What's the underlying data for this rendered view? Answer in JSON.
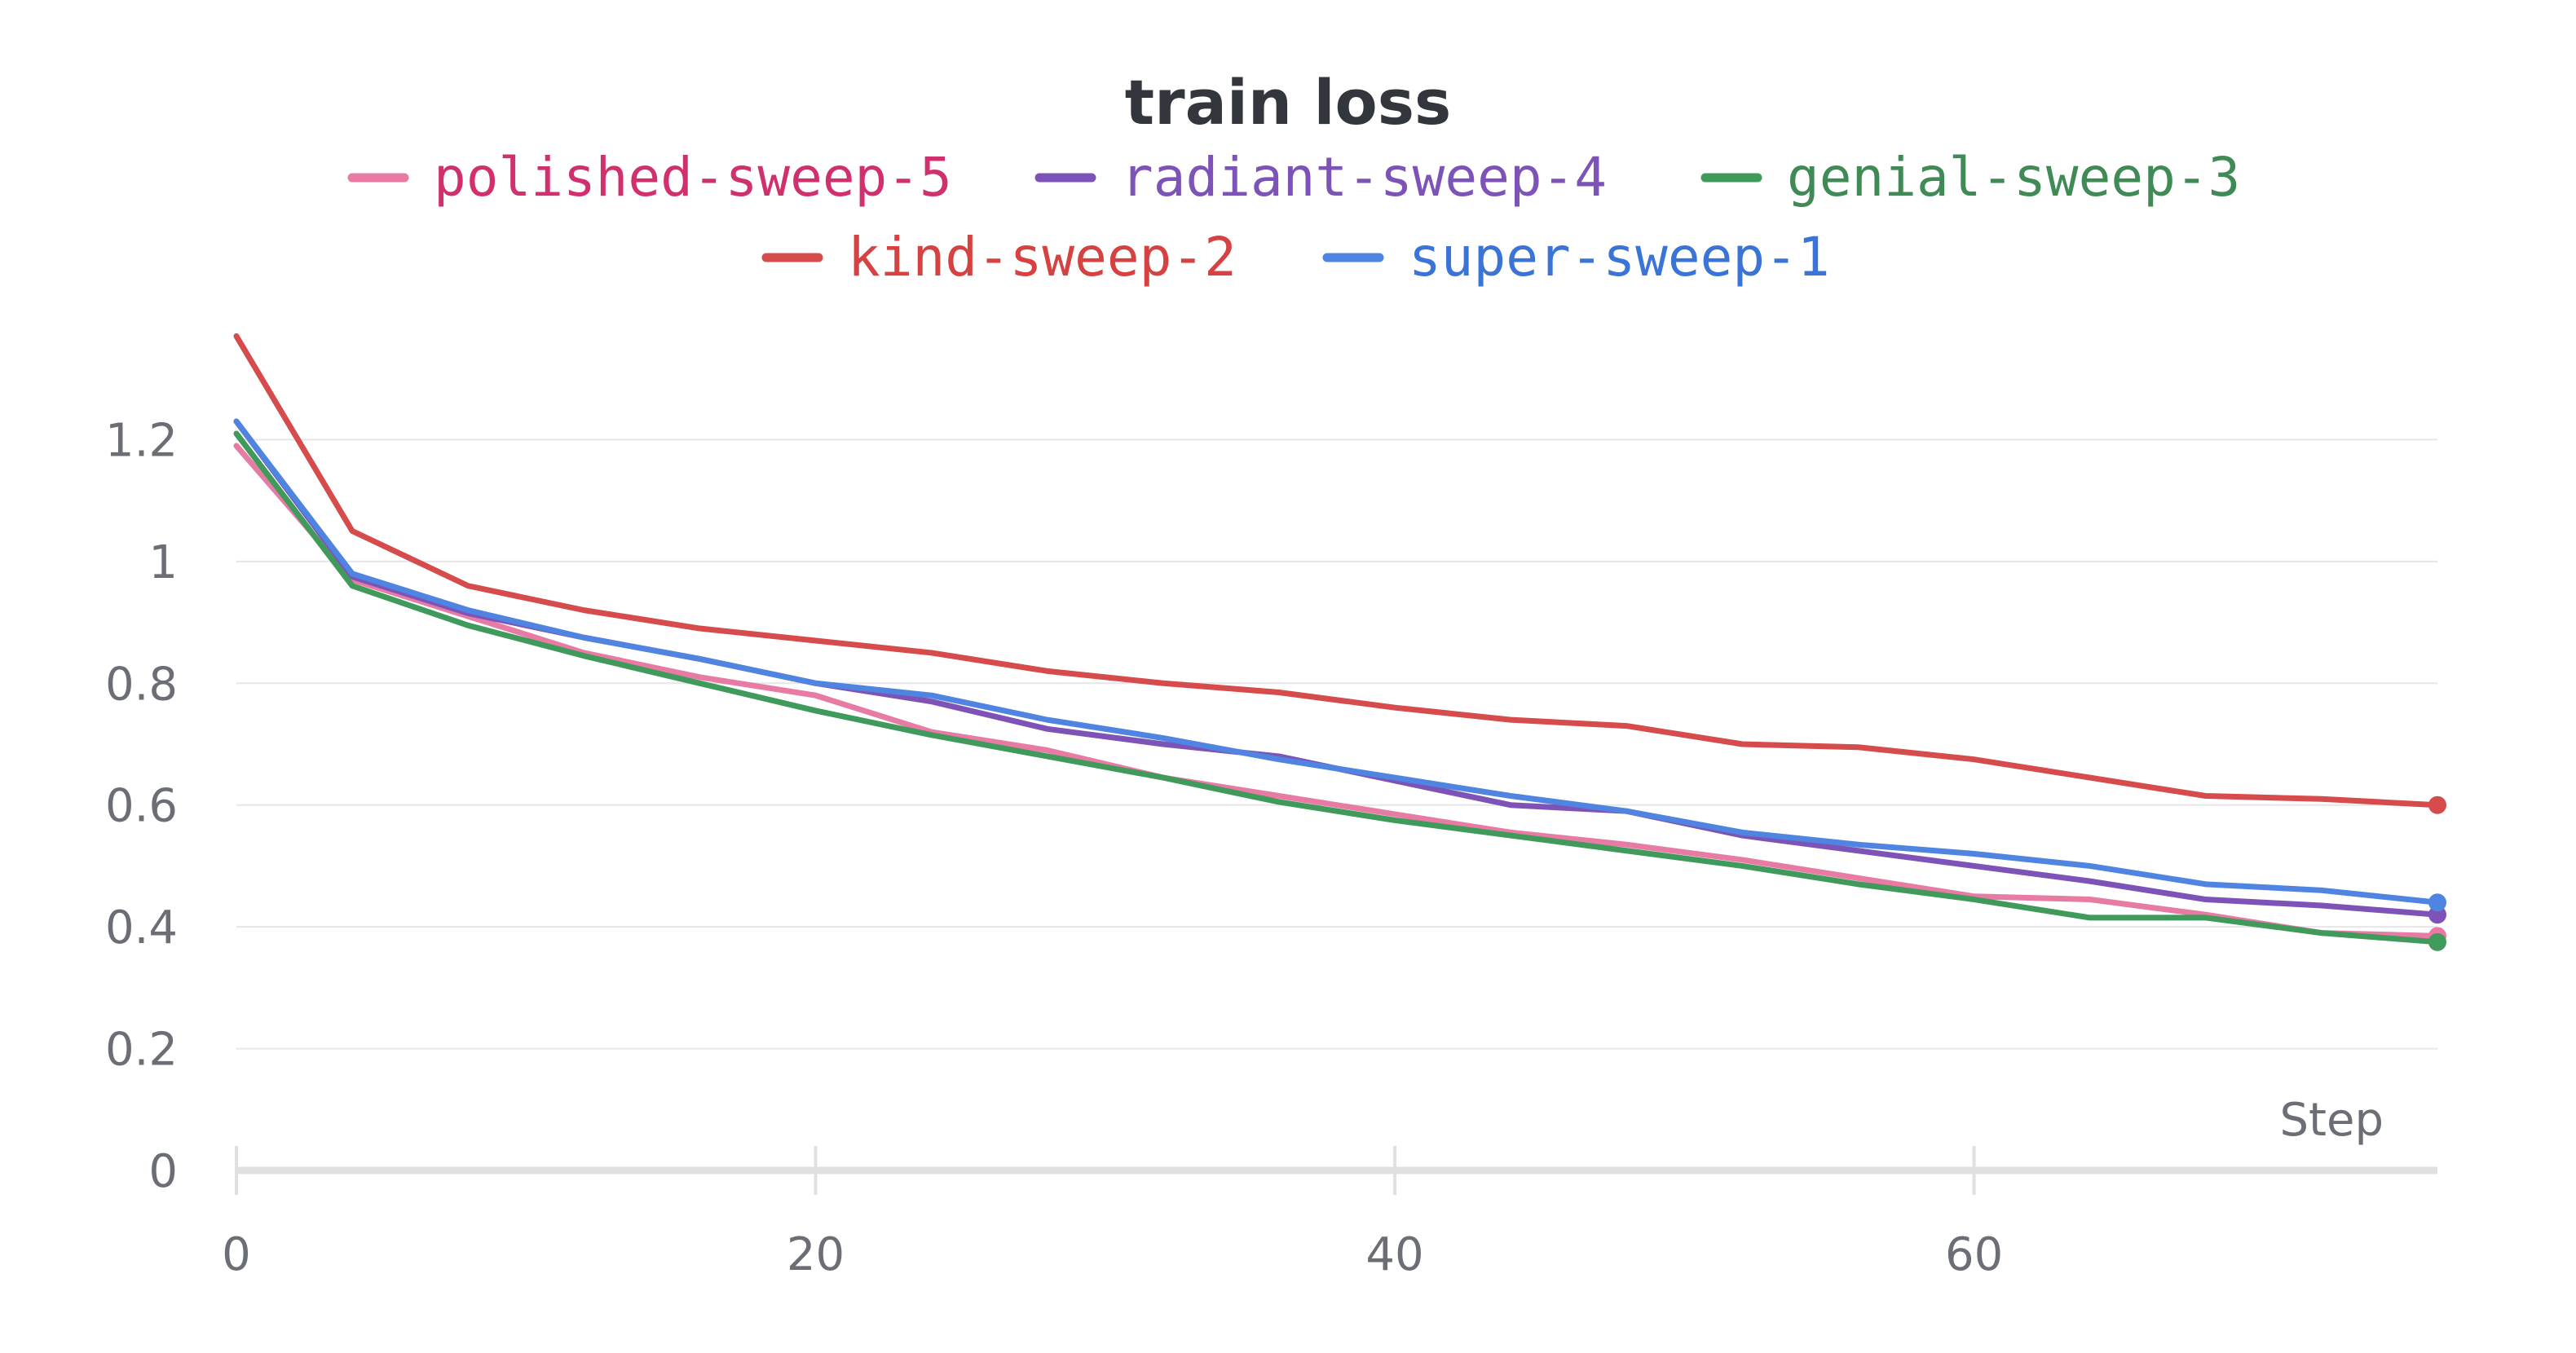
{
  "chart_data": {
    "type": "line",
    "title": "train loss",
    "xlabel": "Step",
    "ylabel": "",
    "xlim": [
      0,
      76
    ],
    "ylim": [
      0,
      1.4
    ],
    "x_ticks": [
      0,
      20,
      40,
      60
    ],
    "y_ticks": [
      0,
      0.2,
      0.4,
      0.6,
      0.8,
      1,
      1.2
    ],
    "x_tick_labels": [
      "0",
      "20",
      "40",
      "60"
    ],
    "y_tick_labels": [
      "0",
      "0.2",
      "0.4",
      "0.6",
      "0.8",
      "1",
      "1.2"
    ],
    "grid": true,
    "legend_position": "top-center",
    "x": [
      0,
      4,
      8,
      12,
      16,
      20,
      24,
      28,
      32,
      36,
      40,
      44,
      48,
      52,
      56,
      60,
      64,
      68,
      72,
      76
    ],
    "series": [
      {
        "name": "polished-sweep-5",
        "color": "#e87ba4",
        "label_color": "#d1306f",
        "values": [
          1.19,
          0.97,
          0.91,
          0.85,
          0.81,
          0.78,
          0.72,
          0.69,
          0.645,
          0.615,
          0.585,
          0.555,
          0.535,
          0.51,
          0.48,
          0.45,
          0.445,
          0.42,
          0.39,
          0.385
        ]
      },
      {
        "name": "radiant-sweep-4",
        "color": "#7e53b8",
        "label_color": "#7e53b8",
        "values": [
          1.23,
          0.975,
          0.915,
          0.875,
          0.84,
          0.8,
          0.77,
          0.725,
          0.7,
          0.68,
          0.64,
          0.6,
          0.59,
          0.55,
          0.525,
          0.5,
          0.475,
          0.445,
          0.435,
          0.42
        ]
      },
      {
        "name": "genial-sweep-3",
        "color": "#3f9a5c",
        "label_color": "#3f8a55",
        "values": [
          1.21,
          0.96,
          0.895,
          0.845,
          0.8,
          0.755,
          0.715,
          0.68,
          0.645,
          0.605,
          0.575,
          0.55,
          0.525,
          0.5,
          0.47,
          0.445,
          0.415,
          0.415,
          0.39,
          0.375
        ]
      },
      {
        "name": "kind-sweep-2",
        "color": "#d64b4b",
        "label_color": "#d64242",
        "values": [
          1.37,
          1.05,
          0.96,
          0.92,
          0.89,
          0.87,
          0.85,
          0.82,
          0.8,
          0.785,
          0.76,
          0.74,
          0.73,
          0.7,
          0.695,
          0.675,
          0.645,
          0.615,
          0.61,
          0.6
        ]
      },
      {
        "name": "super-sweep-1",
        "color": "#4f85e0",
        "label_color": "#3a74d6",
        "values": [
          1.23,
          0.98,
          0.92,
          0.875,
          0.84,
          0.8,
          0.78,
          0.74,
          0.71,
          0.675,
          0.645,
          0.615,
          0.59,
          0.555,
          0.535,
          0.52,
          0.5,
          0.47,
          0.46,
          0.44
        ]
      }
    ]
  }
}
